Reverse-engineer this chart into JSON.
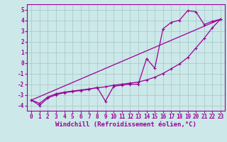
{
  "background_color": "#cce8e8",
  "grid_color": "#aacccc",
  "line_color": "#990099",
  "marker_color": "#990099",
  "xlabel": "Windchill (Refroidissement éolien,°C)",
  "xlim": [
    -0.5,
    23.5
  ],
  "ylim": [
    -4.5,
    5.5
  ],
  "yticks": [
    -4,
    -3,
    -2,
    -1,
    0,
    1,
    2,
    3,
    4,
    5
  ],
  "xticks": [
    0,
    1,
    2,
    3,
    4,
    5,
    6,
    7,
    8,
    9,
    10,
    11,
    12,
    13,
    14,
    15,
    16,
    17,
    18,
    19,
    20,
    21,
    22,
    23
  ],
  "line1_x": [
    0,
    1,
    2,
    3,
    4,
    5,
    6,
    7,
    8,
    9,
    10,
    11,
    12,
    13,
    14,
    15,
    16,
    17,
    18,
    19,
    20,
    21,
    22,
    23
  ],
  "line1_y": [
    -3.5,
    -4.0,
    -3.3,
    -3.0,
    -2.8,
    -2.7,
    -2.6,
    -2.5,
    -2.3,
    -3.6,
    -2.2,
    -2.1,
    -2.0,
    -2.0,
    0.4,
    -0.5,
    3.2,
    3.8,
    4.0,
    4.9,
    4.8,
    3.6,
    3.9,
    4.1
  ],
  "line2_x": [
    0,
    1,
    2,
    3,
    4,
    5,
    6,
    7,
    8,
    9,
    10,
    11,
    12,
    13,
    14,
    15,
    16,
    17,
    18,
    19,
    20,
    21,
    22,
    23
  ],
  "line2_y": [
    -3.5,
    -3.8,
    -3.2,
    -2.9,
    -2.75,
    -2.65,
    -2.55,
    -2.45,
    -2.35,
    -2.25,
    -2.1,
    -2.0,
    -1.9,
    -1.8,
    -1.6,
    -1.35,
    -1.0,
    -0.55,
    -0.1,
    0.5,
    1.4,
    2.3,
    3.3,
    4.1
  ],
  "line3_x": [
    0,
    23
  ],
  "line3_y": [
    -3.5,
    4.1
  ],
  "font_size_xlabel": 6.5,
  "font_size_ticks": 5.5
}
